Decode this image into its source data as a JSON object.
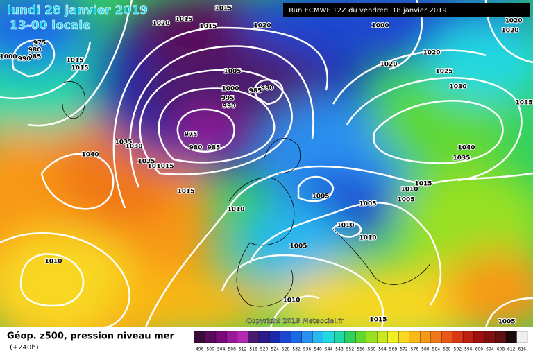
{
  "header": {
    "date": "lundi 28 janvier 2019",
    "time": "13-00 locale",
    "run": "Run ECMWF 12Z du vendredi 18 janvier 2019"
  },
  "copyright": "Copyright 2019 Meteociel.fr",
  "footer": {
    "title": "Géop. z500, pression niveau mer",
    "lead": "(+240h)"
  },
  "legend": {
    "labels": [
      496,
      500,
      504,
      508,
      512,
      516,
      520,
      524,
      528,
      532,
      536,
      540,
      544,
      548,
      552,
      556,
      560,
      564,
      568,
      572,
      576,
      580,
      584,
      588,
      592,
      596,
      600,
      604,
      608,
      612,
      616
    ],
    "colors": [
      "#3a0a3a",
      "#5a0a5a",
      "#7a0a7a",
      "#9a189a",
      "#b428b4",
      "#4a1a6e",
      "#2a1a8a",
      "#1a2aaa",
      "#1a46d0",
      "#1a6ae6",
      "#2a90f0",
      "#28b8f0",
      "#20d8e0",
      "#20d8a8",
      "#30d060",
      "#60d830",
      "#98e020",
      "#c8e820",
      "#f0f020",
      "#f8d820",
      "#f8b818",
      "#f89818",
      "#f07818",
      "#e85818",
      "#d83818",
      "#c02010",
      "#a01010",
      "#801010",
      "#601010",
      "#1a0a0a",
      "#f0f0f0"
    ]
  },
  "isobar_labels": [
    1015,
    1015,
    1015,
    1020,
    1020,
    1000,
    1020,
    1020,
    975,
    980,
    985,
    1000,
    990,
    1015,
    1015,
    1005,
    1020,
    1020,
    1025,
    980,
    985,
    1000,
    995,
    990,
    1030,
    1035,
    975,
    980,
    985,
    1035,
    1030,
    1040,
    1040,
    1035,
    1025,
    1020,
    1015,
    1015,
    1015,
    1010,
    1005,
    1005,
    1005,
    1010,
    1010,
    1010,
    1005,
    1010,
    1010,
    1015,
    1005
  ]
}
